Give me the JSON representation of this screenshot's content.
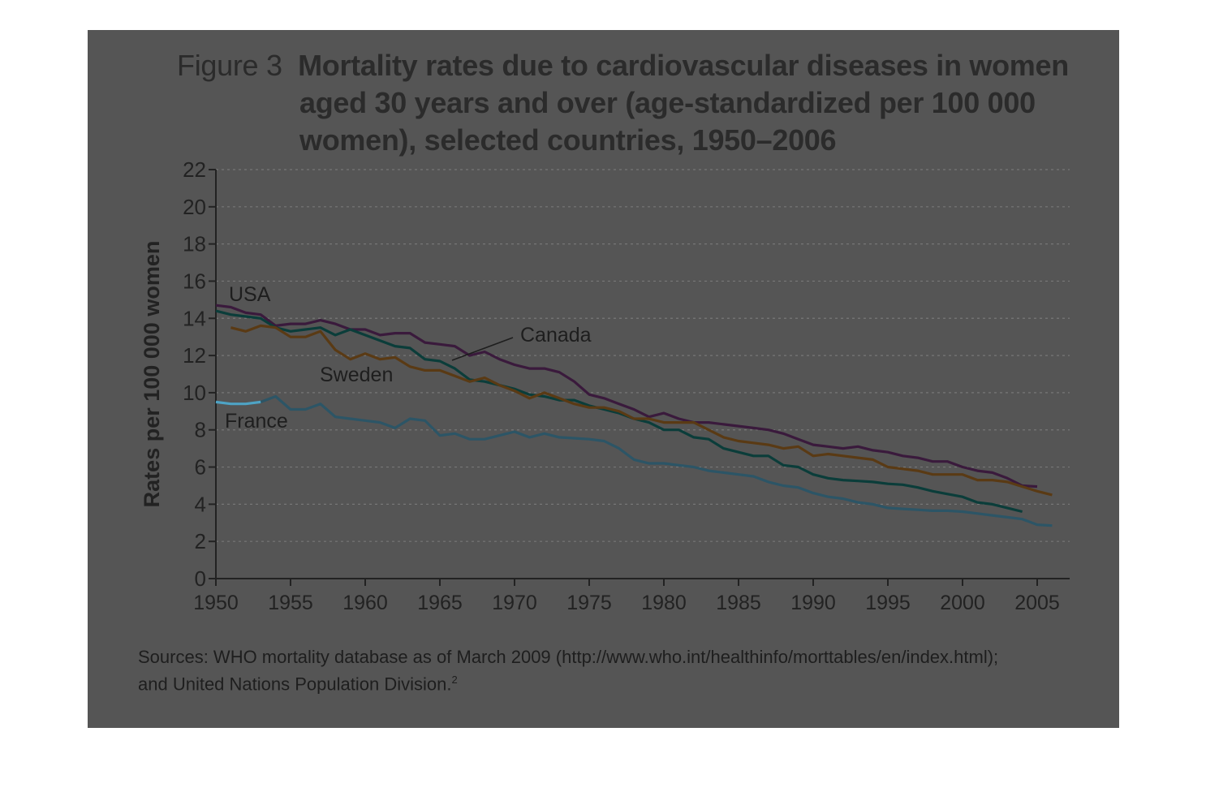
{
  "figure": {
    "label": "Figure 3",
    "title_lines": [
      "Mortality rates due to cardiovascular diseases in women",
      "aged 30 years and over (age-standardized per 100 000",
      "women), selected countries, 1950–2006"
    ]
  },
  "sources": {
    "line1": "Sources: WHO mortality database as of March 2009 (http://www.who.int/healthinfo/morttables/en/index.html);",
    "line2": "and United Nations Population Division.",
    "footnote": "2"
  },
  "colors": {
    "panel_background": "#555555",
    "USA": "#3a1a3c",
    "Canada": "#0b3d3a",
    "Sweden": "#5a3a14",
    "France": "#2c5566",
    "France_early": "#4fa3c4",
    "axis": "#222222",
    "grid": "#777777"
  },
  "chart_data": {
    "type": "line",
    "title": "Mortality rates due to cardiovascular diseases in women aged 30 years and over (age-standardized per 100 000 women), selected countries, 1950–2006",
    "xlabel": "",
    "ylabel": "Rates per 100 000 women",
    "xlim": [
      1950,
      2007
    ],
    "ylim": [
      0,
      22
    ],
    "x_ticks": [
      1950,
      1955,
      1960,
      1965,
      1970,
      1975,
      1980,
      1985,
      1990,
      1995,
      2000,
      2005
    ],
    "y_ticks": [
      0,
      2,
      4,
      6,
      8,
      10,
      12,
      14,
      16,
      18,
      20,
      22
    ],
    "grid": "horizontal dashed",
    "legend": "inline labels",
    "series": [
      {
        "name": "USA",
        "x": [
          1950,
          1951,
          1952,
          1953,
          1954,
          1955,
          1956,
          1957,
          1958,
          1959,
          1960,
          1961,
          1962,
          1963,
          1964,
          1965,
          1966,
          1967,
          1968,
          1969,
          1970,
          1971,
          1972,
          1973,
          1974,
          1975,
          1976,
          1977,
          1978,
          1979,
          1980,
          1981,
          1982,
          1983,
          1984,
          1985,
          1986,
          1987,
          1988,
          1989,
          1990,
          1991,
          1992,
          1993,
          1994,
          1995,
          1996,
          1997,
          1998,
          1999,
          2000,
          2001,
          2002,
          2003,
          2004,
          2005
        ],
        "y": [
          14.7,
          14.6,
          14.3,
          14.2,
          13.6,
          13.7,
          13.7,
          13.9,
          13.7,
          13.4,
          13.4,
          13.1,
          13.2,
          13.2,
          12.7,
          12.6,
          12.5,
          12.0,
          12.2,
          11.8,
          11.5,
          11.3,
          11.3,
          11.1,
          10.6,
          9.9,
          9.7,
          9.4,
          9.1,
          8.7,
          8.9,
          8.6,
          8.4,
          8.4,
          8.3,
          8.2,
          8.1,
          8.0,
          7.8,
          7.5,
          7.2,
          7.1,
          7.0,
          7.1,
          6.9,
          6.8,
          6.6,
          6.5,
          6.3,
          6.3,
          6.0,
          5.8,
          5.7,
          5.4,
          5.0,
          4.95
        ]
      },
      {
        "name": "Canada",
        "x": [
          1950,
          1951,
          1952,
          1953,
          1954,
          1955,
          1956,
          1957,
          1958,
          1959,
          1960,
          1961,
          1962,
          1963,
          1964,
          1965,
          1966,
          1967,
          1968,
          1969,
          1970,
          1971,
          1972,
          1973,
          1974,
          1975,
          1976,
          1977,
          1978,
          1979,
          1980,
          1981,
          1982,
          1983,
          1984,
          1985,
          1986,
          1987,
          1988,
          1989,
          1990,
          1991,
          1992,
          1993,
          1994,
          1995,
          1996,
          1997,
          1998,
          1999,
          2000,
          2001,
          2002,
          2003,
          2004
        ],
        "y": [
          14.4,
          14.2,
          14.1,
          14.0,
          13.5,
          13.3,
          13.4,
          13.5,
          13.1,
          13.4,
          13.1,
          12.8,
          12.5,
          12.4,
          11.8,
          11.7,
          11.3,
          10.7,
          10.6,
          10.4,
          10.2,
          9.9,
          9.8,
          9.6,
          9.6,
          9.3,
          9.1,
          8.9,
          8.6,
          8.4,
          8.0,
          8.0,
          7.6,
          7.5,
          7.0,
          6.8,
          6.6,
          6.6,
          6.1,
          6.0,
          5.6,
          5.4,
          5.3,
          5.25,
          5.2,
          5.1,
          5.05,
          4.9,
          4.7,
          4.55,
          4.4,
          4.1,
          4.0,
          3.8,
          3.6
        ]
      },
      {
        "name": "Sweden",
        "x": [
          1951,
          1952,
          1953,
          1954,
          1955,
          1956,
          1957,
          1958,
          1959,
          1960,
          1961,
          1962,
          1963,
          1964,
          1965,
          1966,
          1967,
          1968,
          1969,
          1970,
          1971,
          1972,
          1973,
          1974,
          1975,
          1976,
          1977,
          1978,
          1979,
          1980,
          1981,
          1982,
          1983,
          1984,
          1985,
          1986,
          1987,
          1988,
          1989,
          1990,
          1991,
          1992,
          1993,
          1994,
          1995,
          1996,
          1997,
          1998,
          1999,
          2000,
          2001,
          2002,
          2003,
          2004,
          2005,
          2006
        ],
        "y": [
          13.5,
          13.3,
          13.6,
          13.5,
          13.0,
          13.0,
          13.3,
          12.3,
          11.8,
          12.1,
          11.8,
          11.9,
          11.4,
          11.2,
          11.2,
          10.9,
          10.6,
          10.8,
          10.4,
          10.1,
          9.7,
          10.0,
          9.7,
          9.4,
          9.2,
          9.2,
          9.0,
          8.6,
          8.6,
          8.4,
          8.4,
          8.4,
          8.0,
          7.6,
          7.4,
          7.3,
          7.2,
          7.0,
          7.1,
          6.6,
          6.7,
          6.6,
          6.5,
          6.4,
          6.0,
          5.9,
          5.8,
          5.6,
          5.6,
          5.6,
          5.3,
          5.3,
          5.2,
          4.95,
          4.7,
          4.5
        ]
      },
      {
        "name": "France",
        "x": [
          1950,
          1951,
          1952,
          1953,
          1954,
          1955,
          1956,
          1957,
          1958,
          1959,
          1960,
          1961,
          1962,
          1963,
          1964,
          1965,
          1966,
          1967,
          1968,
          1969,
          1970,
          1971,
          1972,
          1973,
          1974,
          1975,
          1976,
          1977,
          1978,
          1979,
          1980,
          1981,
          1982,
          1983,
          1984,
          1985,
          1986,
          1987,
          1988,
          1989,
          1990,
          1991,
          1992,
          1993,
          1994,
          1995,
          1996,
          1997,
          1998,
          1999,
          2000,
          2001,
          2002,
          2003,
          2004,
          2005,
          2006
        ],
        "y": [
          9.5,
          9.4,
          9.4,
          9.5,
          9.8,
          9.1,
          9.1,
          9.4,
          8.7,
          8.6,
          8.5,
          8.4,
          8.1,
          8.6,
          8.5,
          7.7,
          7.8,
          7.5,
          7.5,
          7.7,
          7.9,
          7.6,
          7.8,
          7.6,
          7.55,
          7.5,
          7.4,
          7.0,
          6.4,
          6.2,
          6.2,
          6.1,
          6.0,
          5.8,
          5.7,
          5.6,
          5.5,
          5.2,
          5.0,
          4.9,
          4.6,
          4.4,
          4.3,
          4.1,
          4.0,
          3.8,
          3.75,
          3.7,
          3.65,
          3.65,
          3.6,
          3.5,
          3.4,
          3.3,
          3.2,
          2.9,
          2.85
        ]
      }
    ],
    "annotations": [
      "USA",
      "Canada",
      "Sweden",
      "France"
    ]
  }
}
